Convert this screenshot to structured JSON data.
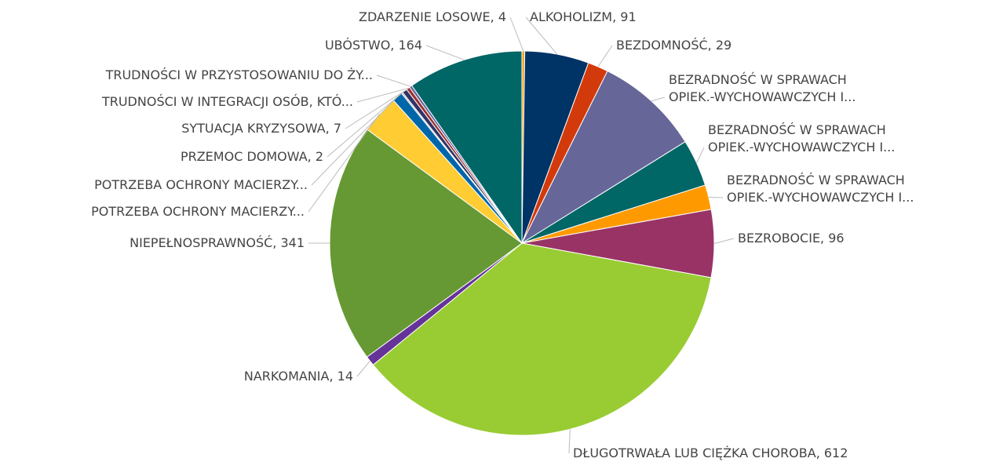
{
  "chart_data": {
    "type": "pie",
    "categories": [
      "ZDARZENIE LOSOWE, 4",
      "ALKOHOLIZM, 91",
      "BEZDOMNOŚĆ, 29",
      "BEZRADNOŚĆ W SPRAWACH\nOPIEK.-WYCHOWAWCZYCH I...",
      "BEZRADNOŚĆ W SPRAWACH\nOPIEK.-WYCHOWAWCZYCH I...",
      "BEZRADNOŚĆ W SPRAWACH\nOPIEK.-WYCHOWAWCZYCH I...",
      "BEZROBOCIE, 96",
      "DŁUGOTRWAŁA LUB CIĘŻKA CHOROBA, 612",
      "NARKOMANIA, 14",
      "NIEPEŁNOSPRAWNOŚĆ, 341",
      "POTRZEBA OCHRONY MACIERZY...",
      "POTRZEBA OCHRONY MACIERZY...",
      "PRZEMOC DOMOWA, 2",
      "SYTUACJA KRYZYSOWA, 7",
      "TRUDNOŚCI W INTEGRACJI OSÓB, KTÓ...",
      "TRUDNOŚCI W PRZYSTOSOWANIU DO ŻY...",
      "UBÓSTWO, 164"
    ],
    "values": [
      4,
      91,
      29,
      149,
      67,
      35,
      96,
      612,
      14,
      341,
      55,
      15,
      2,
      7,
      5,
      4,
      164
    ],
    "colors": [
      "#f7a21b",
      "#003366",
      "#d33a0b",
      "#666699",
      "#006666",
      "#ff9900",
      "#993366",
      "#99cc33",
      "#663399",
      "#669933",
      "#ffcc33",
      "#0066aa",
      "#aaaaaa",
      "#333366",
      "#993333",
      "#666699",
      "#006666"
    ]
  }
}
